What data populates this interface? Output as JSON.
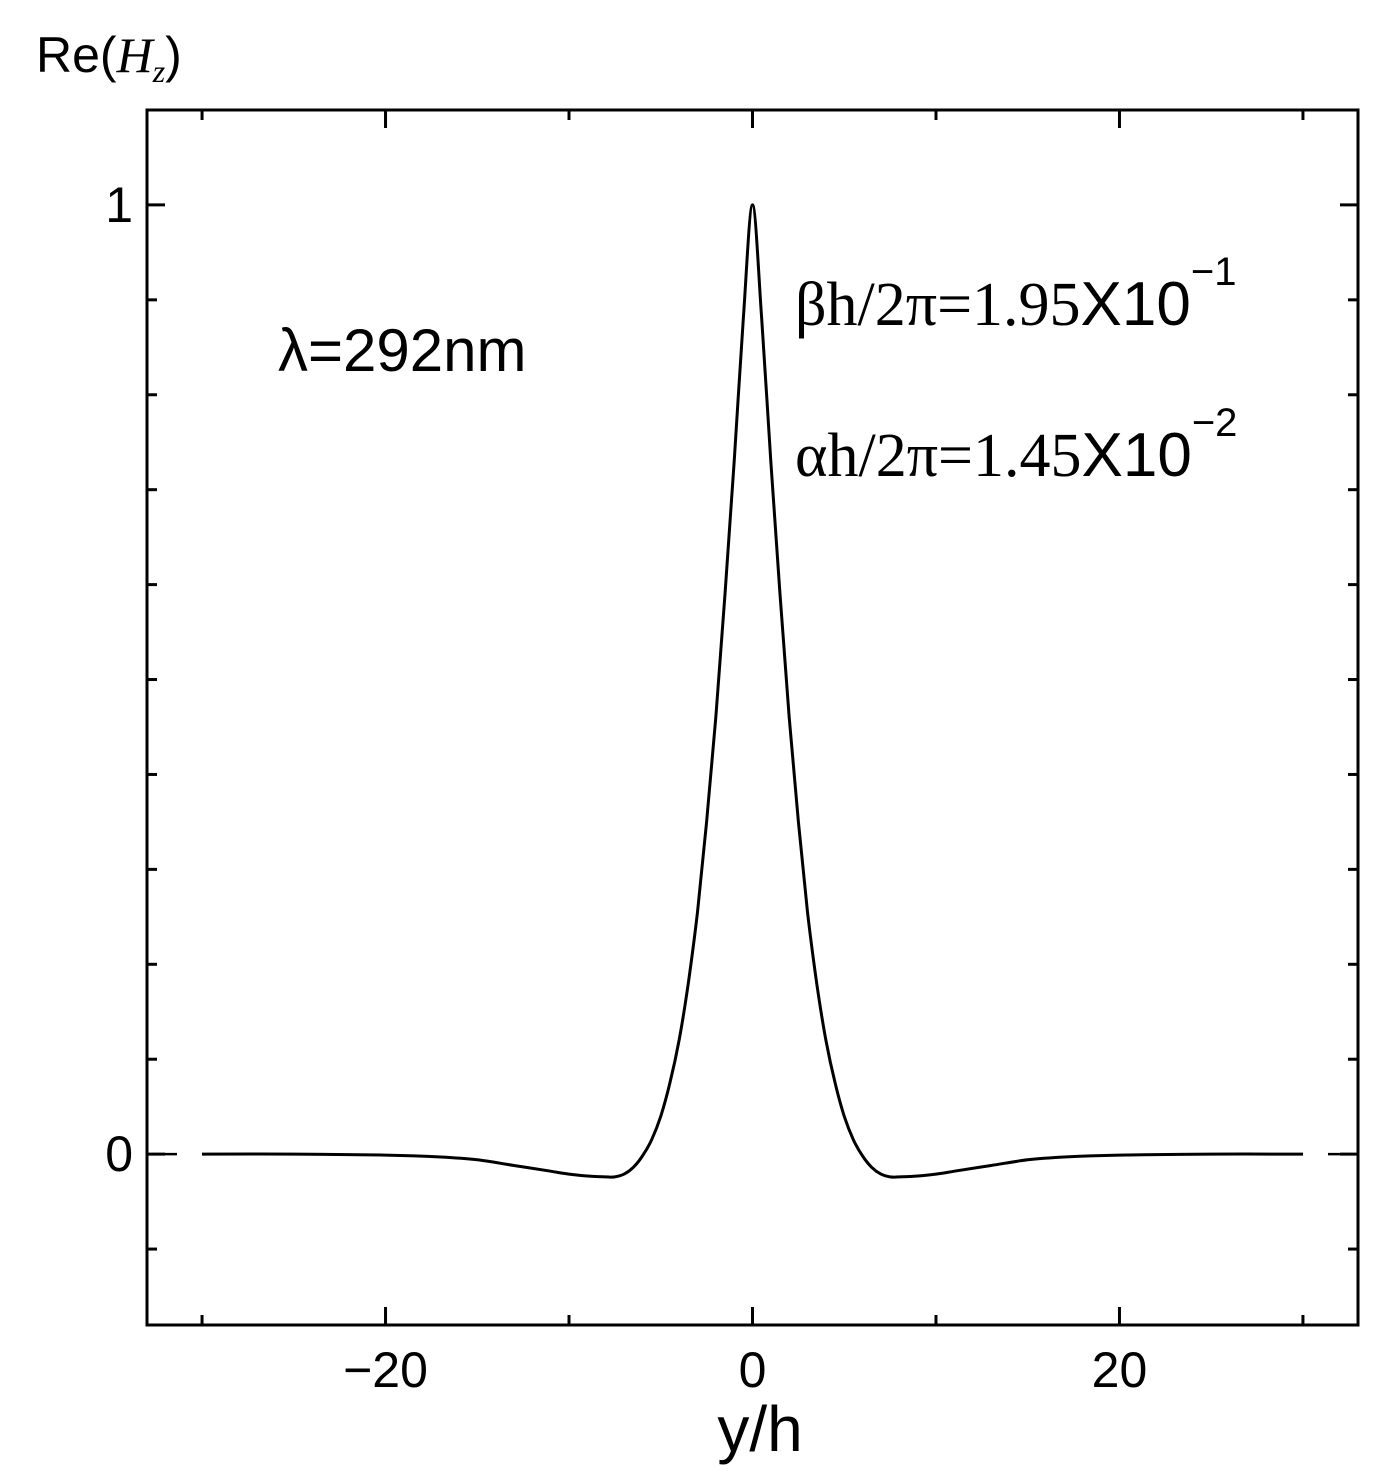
{
  "chart_data": {
    "type": "line",
    "ylabel_prefix": "Re(",
    "ylabel_var": "H",
    "ylabel_sub": "z",
    "ylabel_suffix": ")",
    "xlabel": "y/h",
    "xlim": [
      -33,
      33
    ],
    "ylim": [
      -0.18,
      1.1
    ],
    "x_major_ticks": [
      -20,
      0,
      20
    ],
    "x_tick_labels": [
      "−20",
      "0",
      "20"
    ],
    "x_minor_ticks": [
      -30,
      -10,
      10,
      30
    ],
    "y_major_ticks": [
      0,
      1
    ],
    "y_tick_labels": [
      "0",
      "1"
    ],
    "y_minor_ticks": [
      -0.1,
      0.1,
      0.2,
      0.3,
      0.4,
      0.5,
      0.6,
      0.7,
      0.8,
      0.9
    ],
    "grid": false,
    "annotations": {
      "wavelength": "λ=292nm",
      "beta": {
        "lhs": "βh/2π=1.95",
        "times": "X10",
        "exp": "−1"
      },
      "alpha": {
        "lhs": "αh/2π=1.45",
        "times": "X10",
        "exp": "−2"
      }
    },
    "series": [
      {
        "x": [
          -30,
          -25,
          -20,
          -17,
          -15,
          -13,
          -11,
          -10,
          -9,
          -8,
          -7.5,
          -7,
          -6.5,
          -6,
          -5.5,
          -5,
          -4.5,
          -4,
          -3.5,
          -3,
          -2.5,
          -2,
          -1.5,
          -1,
          -0.5,
          0,
          0.5,
          1,
          1.5,
          2,
          2.5,
          3,
          3.5,
          4,
          4.5,
          5,
          5.5,
          6,
          6.5,
          7,
          7.5,
          8,
          9,
          10,
          11,
          13,
          15,
          17,
          20,
          25,
          30
        ],
        "y": [
          0.0,
          0.0,
          -0.001,
          -0.003,
          -0.006,
          -0.012,
          -0.018,
          -0.021,
          -0.023,
          -0.024,
          -0.024,
          -0.021,
          -0.014,
          -0.002,
          0.015,
          0.04,
          0.075,
          0.12,
          0.18,
          0.255,
          0.35,
          0.46,
          0.59,
          0.73,
          0.88,
          1.0,
          0.88,
          0.73,
          0.59,
          0.46,
          0.35,
          0.255,
          0.18,
          0.12,
          0.075,
          0.04,
          0.015,
          -0.002,
          -0.014,
          -0.021,
          -0.024,
          -0.024,
          -0.023,
          -0.021,
          -0.018,
          -0.012,
          -0.006,
          -0.003,
          -0.001,
          0.0,
          0.0
        ]
      }
    ]
  }
}
